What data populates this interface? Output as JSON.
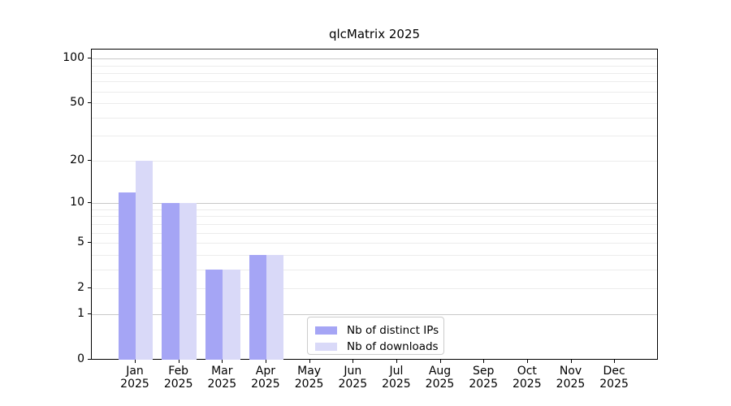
{
  "title": "qlcMatrix 2025",
  "legend": {
    "items": [
      {
        "label": "Nb of distinct IPs",
        "color": "#a5a5f5"
      },
      {
        "label": "Nb of downloads",
        "color": "#d9d9f8"
      }
    ]
  },
  "chart_data": {
    "type": "bar",
    "title": "qlcMatrix 2025",
    "x_months": [
      "Jan",
      "Feb",
      "Mar",
      "Apr",
      "May",
      "Jun",
      "Jul",
      "Aug",
      "Sep",
      "Oct",
      "Nov",
      "Dec"
    ],
    "x_year": "2025",
    "categories": [
      "Jan 2025",
      "Feb 2025",
      "Mar 2025",
      "Apr 2025",
      "May 2025",
      "Jun 2025",
      "Jul 2025",
      "Aug 2025",
      "Sep 2025",
      "Oct 2025",
      "Nov 2025",
      "Dec 2025"
    ],
    "series": [
      {
        "name": "Nb of distinct IPs",
        "color": "#a5a5f5",
        "values": [
          12,
          10,
          3,
          4,
          0,
          0,
          0,
          0,
          0,
          0,
          0,
          0
        ]
      },
      {
        "name": "Nb of downloads",
        "color": "#d9d9f8",
        "values": [
          20,
          10,
          3,
          4,
          0,
          0,
          0,
          0,
          0,
          0,
          0,
          0
        ]
      }
    ],
    "y_scale": "log10(value+1)",
    "y_ticks": [
      0,
      1,
      2,
      5,
      10,
      20,
      50,
      100
    ],
    "ylim": [
      0,
      115
    ],
    "grid": {
      "major": [
        1,
        10,
        100
      ],
      "minor": [
        2,
        3,
        4,
        5,
        6,
        7,
        8,
        9,
        20,
        30,
        40,
        50,
        60,
        70,
        80,
        90
      ]
    },
    "legend_position": "inside lower center"
  },
  "colors": {
    "axis": "#000000",
    "grid_major": "#c8c8c8",
    "grid_minor": "#ececec",
    "background": "#ffffff"
  }
}
